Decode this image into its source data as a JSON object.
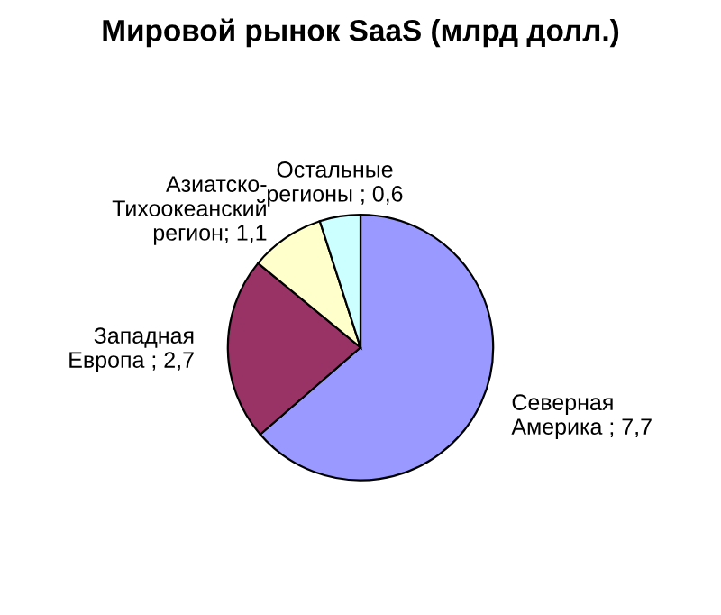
{
  "chart_data": {
    "type": "pie",
    "title": "Мировой рынок SaaS (млрд долл.)",
    "categories": [
      "Северная\nАмерика ; 7,7",
      "Западная\nЕвропа ; 2,7",
      "Азиатско-\nТихоокеанский\nрегион; 1,1",
      "Остальные\nрегионы ; 0,6"
    ],
    "values": [
      7.7,
      2.7,
      1.1,
      0.6
    ],
    "colors": [
      "#9999ff",
      "#993366",
      "#ffffcc",
      "#ccffff"
    ],
    "legend": false
  }
}
